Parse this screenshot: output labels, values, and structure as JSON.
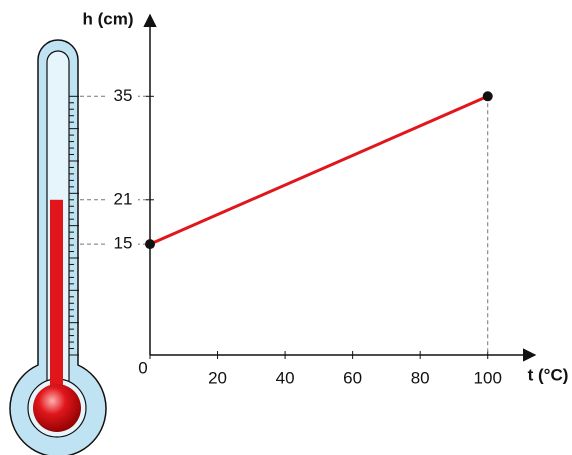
{
  "chart_data": {
    "type": "line",
    "x_label": "t (°C)",
    "y_label": "h (cm)",
    "x": [
      0,
      100
    ],
    "values": [
      15,
      35
    ],
    "color": "#e0161b",
    "xlim": [
      0,
      114
    ],
    "ylim": [
      0,
      46
    ],
    "xticks": [
      0,
      20,
      40,
      60,
      80,
      100
    ],
    "yticks": [
      15,
      21,
      35
    ]
  }
}
